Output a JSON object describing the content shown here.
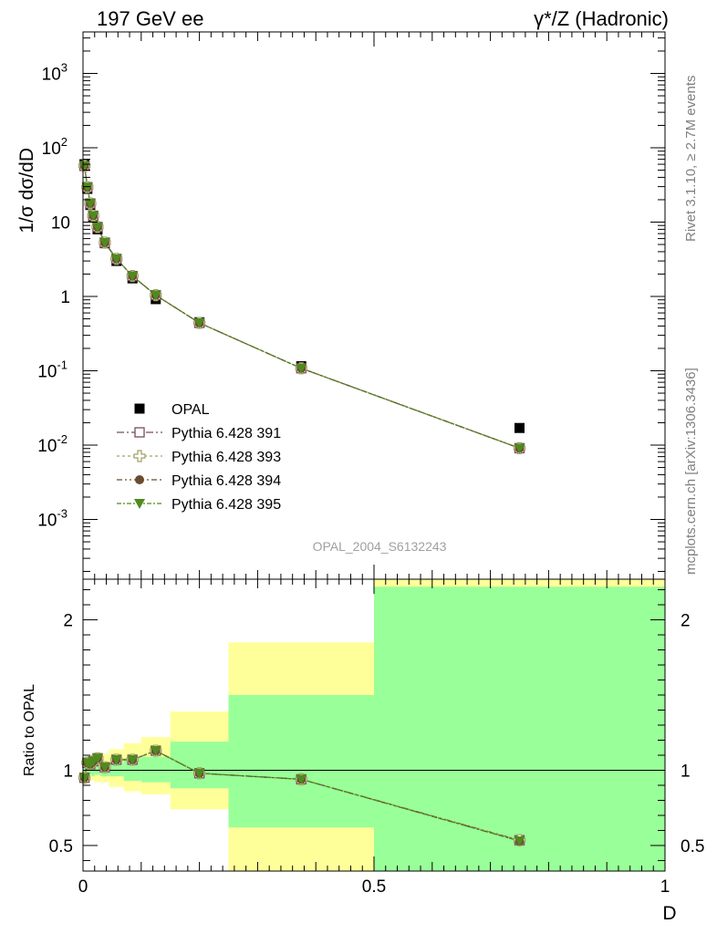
{
  "header": {
    "left_title": "197 GeV ee",
    "right_title": "γ*/Z (Hadronic)"
  },
  "side_labels": {
    "rivet": "Rivet 3.1.10, ≥ 2.7M events",
    "mcplots": "mcplots.cern.ch [arXiv:1306.3436]"
  },
  "watermark": "OPAL_2004_S6132243",
  "colors": {
    "band_inner": "#99ff99",
    "band_outer": "#ffff99",
    "data": "#000000",
    "mc391": "#7a4a5e",
    "mc393": "#a0a060",
    "mc394": "#6b4c2e",
    "mc395": "#4f8a1f"
  },
  "chart_data": [
    {
      "type": "scatter",
      "ylabel": "1/σ dσ/dD",
      "yscale": "log",
      "ylim": [
        0.0002,
        3500
      ],
      "xlim": [
        0,
        1
      ],
      "ytick_labels": [
        "10^-3",
        "10^-2",
        "10^-1",
        "1",
        "10",
        "10^2",
        "10^3"
      ],
      "legend_position": "center-left",
      "bins": [
        [
          0.0,
          0.005
        ],
        [
          0.005,
          0.01
        ],
        [
          0.01,
          0.015
        ],
        [
          0.015,
          0.02
        ],
        [
          0.02,
          0.03
        ],
        [
          0.03,
          0.045
        ],
        [
          0.045,
          0.07
        ],
        [
          0.07,
          0.1
        ],
        [
          0.1,
          0.15
        ],
        [
          0.15,
          0.25
        ],
        [
          0.25,
          0.5
        ],
        [
          0.5,
          1.0
        ]
      ],
      "series": [
        {
          "name": "OPAL",
          "marker": "filled-square",
          "x": [
            0.0025,
            0.0075,
            0.0125,
            0.0175,
            0.025,
            0.0375,
            0.0575,
            0.085,
            0.125,
            0.2,
            0.375,
            0.75
          ],
          "y": [
            60,
            28,
            17,
            11.5,
            8.0,
            5.2,
            3.0,
            1.75,
            0.92,
            0.45,
            0.115,
            0.017
          ]
        },
        {
          "name": "Pythia 6.428 391",
          "marker": "open-square",
          "x": [
            0.0025,
            0.0075,
            0.0125,
            0.0175,
            0.025,
            0.0375,
            0.0575,
            0.085,
            0.125,
            0.2,
            0.375,
            0.75
          ],
          "y": [
            57,
            29.5,
            17.8,
            12.2,
            8.6,
            5.3,
            3.2,
            1.88,
            1.04,
            0.44,
            0.108,
            0.0091
          ]
        },
        {
          "name": "Pythia 6.428 393",
          "marker": "open-cross",
          "x": [
            0.0025,
            0.0075,
            0.0125,
            0.0175,
            0.025,
            0.0375,
            0.0575,
            0.085,
            0.125,
            0.2,
            0.375,
            0.75
          ],
          "y": [
            57,
            29.5,
            17.8,
            12.2,
            8.6,
            5.3,
            3.2,
            1.88,
            1.04,
            0.44,
            0.108,
            0.0091
          ]
        },
        {
          "name": "Pythia 6.428 394",
          "marker": "filled-circle",
          "x": [
            0.0025,
            0.0075,
            0.0125,
            0.0175,
            0.025,
            0.0375,
            0.0575,
            0.085,
            0.125,
            0.2,
            0.375,
            0.75
          ],
          "y": [
            57,
            29.5,
            17.8,
            12.2,
            8.6,
            5.3,
            3.2,
            1.88,
            1.04,
            0.44,
            0.108,
            0.0091
          ]
        },
        {
          "name": "Pythia 6.428 395",
          "marker": "filled-triangle-down",
          "x": [
            0.0025,
            0.0075,
            0.0125,
            0.0175,
            0.025,
            0.0375,
            0.0575,
            0.085,
            0.125,
            0.2,
            0.375,
            0.75
          ],
          "y": [
            57,
            29.5,
            17.8,
            12.2,
            8.6,
            5.3,
            3.2,
            1.88,
            1.04,
            0.44,
            0.108,
            0.0091
          ]
        }
      ]
    },
    {
      "type": "line",
      "ylabel": "Ratio to OPAL",
      "xlabel": "D",
      "xlim": [
        0,
        1
      ],
      "ylim": [
        0.33,
        2.27
      ],
      "yticks": [
        0.5,
        1,
        2
      ],
      "ytick_labels": [
        "0.5",
        "1",
        "2"
      ],
      "xticks": [
        0,
        0.5,
        1
      ],
      "xtick_labels": [
        "0",
        "0.5",
        "1"
      ],
      "reference_line": 1,
      "bands": {
        "edges": [
          0.0,
          0.005,
          0.01,
          0.015,
          0.02,
          0.03,
          0.045,
          0.07,
          0.1,
          0.15,
          0.25,
          0.5,
          1.0
        ],
        "inner": [
          [
            0.97,
            1.03
          ],
          [
            0.96,
            1.04
          ],
          [
            0.97,
            1.03
          ],
          [
            0.96,
            1.04
          ],
          [
            0.97,
            1.03
          ],
          [
            0.96,
            1.04
          ],
          [
            0.96,
            1.05
          ],
          [
            0.93,
            1.08
          ],
          [
            0.92,
            1.09
          ],
          [
            0.88,
            1.19
          ],
          [
            0.62,
            1.5
          ],
          [
            0.33,
            2.22
          ]
        ],
        "outer": [
          [
            0.94,
            1.07
          ],
          [
            0.93,
            1.08
          ],
          [
            0.93,
            1.08
          ],
          [
            0.93,
            1.08
          ],
          [
            0.92,
            1.1
          ],
          [
            0.92,
            1.11
          ],
          [
            0.89,
            1.14
          ],
          [
            0.86,
            1.18
          ],
          [
            0.84,
            1.22
          ],
          [
            0.74,
            1.39
          ],
          [
            0.33,
            1.85
          ],
          [
            0.33,
            2.27
          ]
        ]
      },
      "series": [
        {
          "name": "Pythia 6.428 391",
          "x": [
            0.0025,
            0.0075,
            0.0125,
            0.0175,
            0.025,
            0.0375,
            0.0575,
            0.085,
            0.125,
            0.2,
            0.375,
            0.75
          ],
          "y": [
            0.95,
            1.05,
            1.04,
            1.06,
            1.08,
            1.02,
            1.07,
            1.07,
            1.13,
            0.98,
            0.94,
            0.535
          ]
        },
        {
          "name": "Pythia 6.428 393",
          "x": [
            0.0025,
            0.0075,
            0.0125,
            0.0175,
            0.025,
            0.0375,
            0.0575,
            0.085,
            0.125,
            0.2,
            0.375,
            0.75
          ],
          "y": [
            0.95,
            1.05,
            1.04,
            1.06,
            1.08,
            1.02,
            1.07,
            1.07,
            1.13,
            0.98,
            0.94,
            0.535
          ]
        },
        {
          "name": "Pythia 6.428 394",
          "x": [
            0.0025,
            0.0075,
            0.0125,
            0.0175,
            0.025,
            0.0375,
            0.0575,
            0.085,
            0.125,
            0.2,
            0.375,
            0.75
          ],
          "y": [
            0.95,
            1.05,
            1.04,
            1.06,
            1.08,
            1.02,
            1.07,
            1.07,
            1.13,
            0.98,
            0.94,
            0.53
          ]
        },
        {
          "name": "Pythia 6.428 395",
          "x": [
            0.0025,
            0.0075,
            0.0125,
            0.0175,
            0.025,
            0.0375,
            0.0575,
            0.085,
            0.125,
            0.2,
            0.375,
            0.75
          ],
          "y": [
            0.95,
            1.05,
            1.04,
            1.06,
            1.08,
            1.02,
            1.07,
            1.07,
            1.13,
            0.98,
            0.94,
            0.53
          ]
        }
      ]
    }
  ]
}
